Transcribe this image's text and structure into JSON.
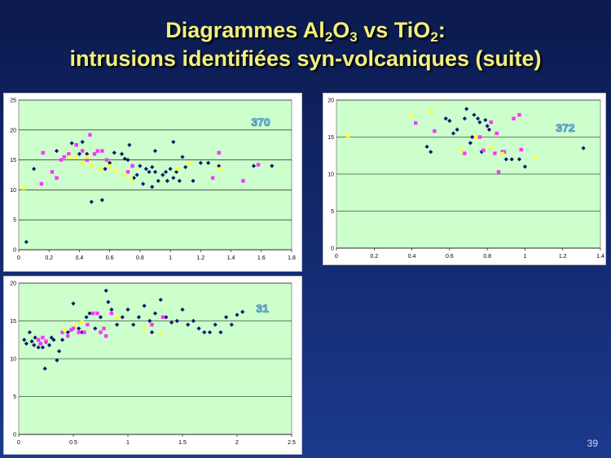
{
  "slide": {
    "title_line1": "Diagrammes Al<sub>2</sub>O<sub>3</sub> vs TiO<sub>2</sub>:",
    "title_line2": "intrusions identifiées syn-volcaniques (suite)",
    "page_number": "39"
  },
  "colors": {
    "plot_area": "#ccffcc",
    "navy": "#0a1a6e",
    "magenta": "#ff33ff",
    "yellow": "#ffff33"
  },
  "chart_data": [
    {
      "type": "scatter",
      "label": "370",
      "xlim": [
        0,
        1.8
      ],
      "ylim": [
        0,
        25
      ],
      "x_ticks": [
        "0",
        "0.2",
        "0.4",
        "0.6",
        "0.8",
        "1",
        "1.2",
        "1.4",
        "1.6",
        "1.8"
      ],
      "y_ticks": [
        "0",
        "5",
        "10",
        "15",
        "20",
        "25"
      ],
      "grid": "horizontal",
      "series": [
        {
          "color": "navy",
          "marker": "diamond",
          "points": [
            [
              0.05,
              1.3
            ],
            [
              0.1,
              13.5
            ],
            [
              0.25,
              16.5
            ],
            [
              0.35,
              17.8
            ],
            [
              0.4,
              16
            ],
            [
              0.42,
              18
            ],
            [
              0.45,
              16
            ],
            [
              0.48,
              8
            ],
            [
              0.55,
              8.3
            ],
            [
              0.57,
              13.5
            ],
            [
              0.6,
              14.5
            ],
            [
              0.63,
              16.2
            ],
            [
              0.68,
              16
            ],
            [
              0.7,
              15.2
            ],
            [
              0.72,
              15
            ],
            [
              0.73,
              17.5
            ],
            [
              0.75,
              14
            ],
            [
              0.76,
              12
            ],
            [
              0.78,
              12.5
            ],
            [
              0.8,
              14
            ],
            [
              0.82,
              11
            ],
            [
              0.84,
              13.5
            ],
            [
              0.86,
              13
            ],
            [
              0.88,
              13.8
            ],
            [
              0.88,
              10.5
            ],
            [
              0.9,
              16.5
            ],
            [
              0.9,
              13
            ],
            [
              0.92,
              11.5
            ],
            [
              0.95,
              12.5
            ],
            [
              0.97,
              13
            ],
            [
              0.98,
              11.5
            ],
            [
              1.0,
              13.5
            ],
            [
              1.02,
              12
            ],
            [
              1.02,
              18
            ],
            [
              1.04,
              13
            ],
            [
              1.06,
              11.5
            ],
            [
              1.08,
              15.5
            ],
            [
              1.1,
              13.8
            ],
            [
              1.15,
              11.5
            ],
            [
              1.2,
              14.5
            ],
            [
              1.25,
              14.5
            ],
            [
              1.32,
              14
            ],
            [
              1.55,
              14
            ],
            [
              1.67,
              14
            ]
          ]
        },
        {
          "color": "magenta",
          "marker": "square",
          "points": [
            [
              0.15,
              11
            ],
            [
              0.16,
              16.2
            ],
            [
              0.22,
              13
            ],
            [
              0.25,
              12
            ],
            [
              0.28,
              15
            ],
            [
              0.3,
              15.5
            ],
            [
              0.33,
              16
            ],
            [
              0.38,
              17.5
            ],
            [
              0.42,
              16.5
            ],
            [
              0.45,
              15
            ],
            [
              0.47,
              19.2
            ],
            [
              0.5,
              16
            ],
            [
              0.52,
              16.5
            ],
            [
              0.55,
              16.5
            ],
            [
              0.58,
              15
            ],
            [
              0.72,
              13
            ],
            [
              0.75,
              14
            ],
            [
              1.28,
              12
            ],
            [
              1.32,
              16.2
            ],
            [
              1.48,
              11.5
            ],
            [
              1.58,
              14.2
            ]
          ]
        },
        {
          "color": "yellow",
          "marker": "square",
          "points": [
            [
              0.03,
              10.3
            ],
            [
              0.34,
              15.5
            ],
            [
              0.38,
              15.5
            ],
            [
              0.42,
              14.5
            ],
            [
              0.45,
              15.5
            ],
            [
              0.48,
              14
            ],
            [
              0.54,
              13.5
            ],
            [
              0.6,
              14
            ],
            [
              0.64,
              13.2
            ],
            [
              0.7,
              12.5
            ],
            [
              0.74,
              11.8
            ],
            [
              1.05,
              13.5
            ],
            [
              1.12,
              14.5
            ],
            [
              1.33,
              13.5
            ]
          ]
        }
      ]
    },
    {
      "type": "scatter",
      "label": "372",
      "xlim": [
        0,
        1.4
      ],
      "ylim": [
        0,
        20
      ],
      "x_ticks": [
        "0",
        "0.2",
        "0.4",
        "0.6",
        "0.8",
        "1",
        "1.2",
        "1.4"
      ],
      "y_ticks": [
        "0",
        "5",
        "10",
        "15",
        "20"
      ],
      "grid": "horizontal",
      "series": [
        {
          "color": "navy",
          "marker": "diamond",
          "points": [
            [
              0.48,
              13.7
            ],
            [
              0.5,
              13
            ],
            [
              0.58,
              17.5
            ],
            [
              0.6,
              17.2
            ],
            [
              0.62,
              15.5
            ],
            [
              0.64,
              16
            ],
            [
              0.68,
              17.5
            ],
            [
              0.69,
              18.8
            ],
            [
              0.71,
              14.2
            ],
            [
              0.72,
              15
            ],
            [
              0.73,
              18
            ],
            [
              0.75,
              17.5
            ],
            [
              0.76,
              17
            ],
            [
              0.77,
              13
            ],
            [
              0.79,
              17.3
            ],
            [
              0.8,
              16.5
            ],
            [
              0.81,
              16
            ],
            [
              0.88,
              13
            ],
            [
              0.9,
              12
            ],
            [
              0.93,
              12
            ],
            [
              0.97,
              12
            ],
            [
              1.0,
              11
            ],
            [
              1.31,
              13.5
            ]
          ]
        },
        {
          "color": "magenta",
          "marker": "square",
          "points": [
            [
              0.42,
              16.9
            ],
            [
              0.52,
              15.8
            ],
            [
              0.68,
              12.8
            ],
            [
              0.76,
              15
            ],
            [
              0.78,
              13.2
            ],
            [
              0.82,
              17
            ],
            [
              0.84,
              12.8
            ],
            [
              0.85,
              15.5
            ],
            [
              0.86,
              10.3
            ],
            [
              0.89,
              13
            ],
            [
              0.94,
              17.5
            ],
            [
              0.97,
              18
            ],
            [
              0.98,
              13.3
            ]
          ]
        },
        {
          "color": "yellow",
          "marker": "square",
          "points": [
            [
              0.06,
              15.2
            ],
            [
              0.4,
              18
            ],
            [
              0.5,
              18.5
            ],
            [
              0.66,
              13.2
            ],
            [
              0.74,
              15
            ],
            [
              0.82,
              13.5
            ],
            [
              0.88,
              12.8
            ],
            [
              1.06,
              12.3
            ]
          ]
        }
      ]
    },
    {
      "type": "scatter",
      "label": "31",
      "xlim": [
        0,
        2.5
      ],
      "ylim": [
        0,
        20
      ],
      "x_ticks": [
        "0",
        "0.5",
        "1",
        "1.5",
        "2",
        "2.5"
      ],
      "y_ticks": [
        "0",
        "5",
        "10",
        "15",
        "20"
      ],
      "grid": "horizontal",
      "series": [
        {
          "color": "navy",
          "marker": "diamond",
          "points": [
            [
              0.05,
              12.5
            ],
            [
              0.07,
              12
            ],
            [
              0.1,
              13.5
            ],
            [
              0.12,
              12.3
            ],
            [
              0.14,
              11.8
            ],
            [
              0.15,
              12.8
            ],
            [
              0.18,
              11.5
            ],
            [
              0.2,
              12
            ],
            [
              0.22,
              11.5
            ],
            [
              0.24,
              8.7
            ],
            [
              0.25,
              12.2
            ],
            [
              0.28,
              11.8
            ],
            [
              0.3,
              12.8
            ],
            [
              0.32,
              12.5
            ],
            [
              0.35,
              9.8
            ],
            [
              0.37,
              11
            ],
            [
              0.4,
              12.5
            ],
            [
              0.45,
              13.5
            ],
            [
              0.5,
              17.3
            ],
            [
              0.55,
              14
            ],
            [
              0.58,
              13.5
            ],
            [
              0.62,
              15.5
            ],
            [
              0.65,
              16
            ],
            [
              0.7,
              14
            ],
            [
              0.75,
              15.5
            ],
            [
              0.8,
              19
            ],
            [
              0.82,
              17.5
            ],
            [
              0.85,
              16.5
            ],
            [
              0.9,
              14.5
            ],
            [
              0.95,
              15.5
            ],
            [
              1.0,
              16.5
            ],
            [
              1.05,
              14.5
            ],
            [
              1.1,
              15.5
            ],
            [
              1.15,
              17
            ],
            [
              1.2,
              15
            ],
            [
              1.22,
              13.5
            ],
            [
              1.25,
              16
            ],
            [
              1.3,
              17.8
            ],
            [
              1.35,
              15.5
            ],
            [
              1.4,
              14.8
            ],
            [
              1.45,
              15
            ],
            [
              1.5,
              16.5
            ],
            [
              1.55,
              14.5
            ],
            [
              1.6,
              15
            ],
            [
              1.65,
              14
            ],
            [
              1.7,
              13.5
            ],
            [
              1.75,
              13.5
            ],
            [
              1.8,
              14.5
            ],
            [
              1.85,
              13.5
            ],
            [
              1.9,
              15.5
            ],
            [
              1.95,
              14.5
            ],
            [
              2.0,
              15.8
            ],
            [
              2.05,
              16.2
            ]
          ]
        },
        {
          "color": "magenta",
          "marker": "square",
          "points": [
            [
              0.18,
              12.5
            ],
            [
              0.2,
              12
            ],
            [
              0.22,
              12.8
            ],
            [
              0.25,
              12.3
            ],
            [
              0.4,
              13.5
            ],
            [
              0.45,
              13
            ],
            [
              0.48,
              13.8
            ],
            [
              0.5,
              14
            ],
            [
              0.55,
              13.5
            ],
            [
              0.6,
              13.5
            ],
            [
              0.63,
              14.5
            ],
            [
              0.68,
              16
            ],
            [
              0.72,
              16
            ],
            [
              0.75,
              13.5
            ],
            [
              0.78,
              14
            ],
            [
              0.8,
              13
            ],
            [
              0.85,
              16
            ],
            [
              1.22,
              14.5
            ],
            [
              1.32,
              15.5
            ]
          ]
        },
        {
          "color": "yellow",
          "marker": "square",
          "points": [
            [
              0.42,
              13.8
            ],
            [
              0.52,
              14.5
            ],
            [
              0.58,
              14.8
            ],
            [
              0.9,
              15.5
            ],
            [
              1.15,
              14
            ],
            [
              1.3,
              13.2
            ]
          ]
        }
      ]
    }
  ]
}
